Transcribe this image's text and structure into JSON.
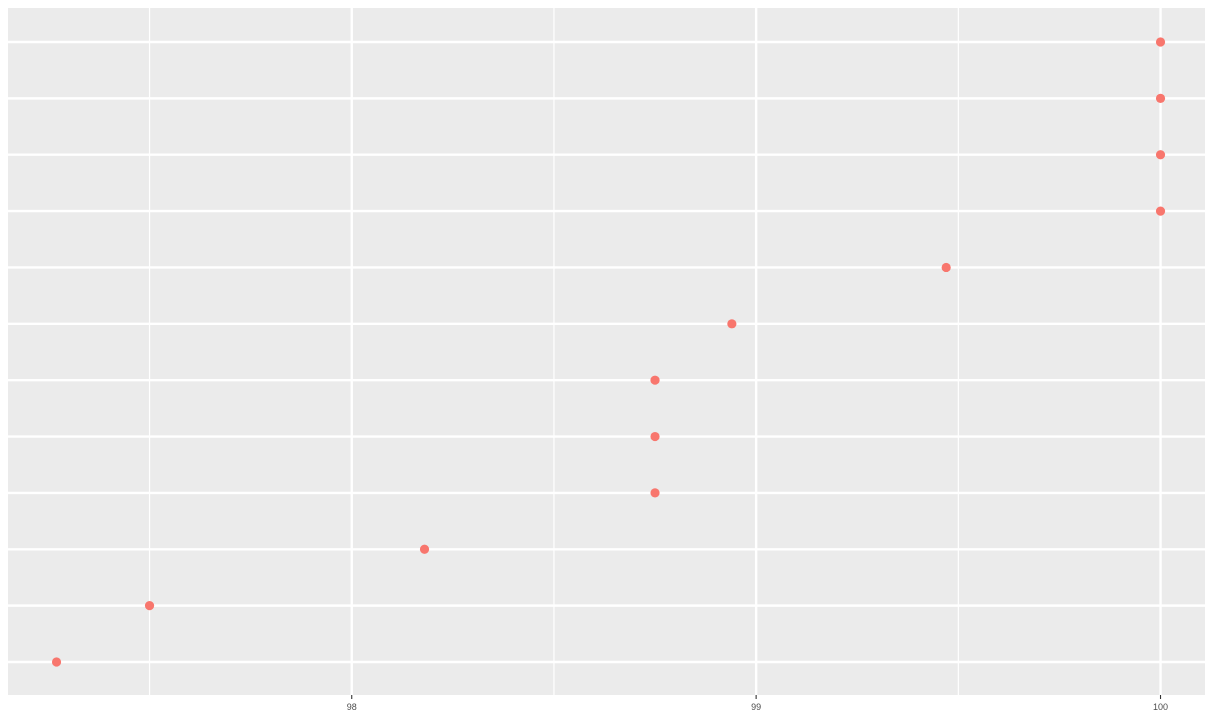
{
  "chart_data": {
    "type": "scatter",
    "title": "",
    "xlabel": "",
    "ylabel": "",
    "xlim": [
      97.15,
      100.11
    ],
    "x_major_ticks": [
      98,
      99,
      100
    ],
    "x_minor_ticks": [
      97.5,
      98.5,
      99.5
    ],
    "x_tick_labels": [
      "98",
      "99",
      "100"
    ],
    "y_categories": 12,
    "grid": true,
    "legend": "none",
    "point_color": "#F8766D",
    "panel_color": "#EBEBEB",
    "grid_color": "#FFFFFF",
    "points": [
      {
        "rank": 1,
        "x": 97.27
      },
      {
        "rank": 2,
        "x": 97.5
      },
      {
        "rank": 3,
        "x": 98.18
      },
      {
        "rank": 4,
        "x": 98.75
      },
      {
        "rank": 5,
        "x": 98.75
      },
      {
        "rank": 6,
        "x": 98.75
      },
      {
        "rank": 7,
        "x": 98.94
      },
      {
        "rank": 8,
        "x": 99.47
      },
      {
        "rank": 9,
        "x": 100
      },
      {
        "rank": 10,
        "x": 100
      },
      {
        "rank": 11,
        "x": 100
      },
      {
        "rank": 12,
        "x": 100
      }
    ]
  }
}
